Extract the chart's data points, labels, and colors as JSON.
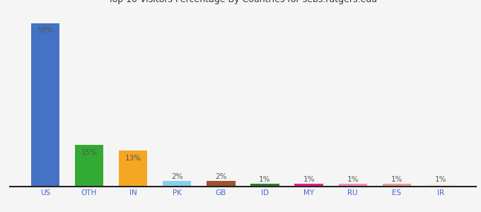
{
  "categories": [
    "US",
    "OTH",
    "IN",
    "PK",
    "GB",
    "ID",
    "MY",
    "RU",
    "ES",
    "IR"
  ],
  "values": [
    59,
    15,
    13,
    2,
    2,
    1,
    1,
    1,
    1,
    1
  ],
  "bar_colors": [
    "#4472c4",
    "#33aa33",
    "#f5a623",
    "#87ceeb",
    "#a0522d",
    "#2e7d32",
    "#e91e8c",
    "#f48fb1",
    "#e8a090",
    "#f5f0dc"
  ],
  "labels": [
    "59%",
    "15%",
    "13%",
    "2%",
    "2%",
    "1%",
    "1%",
    "1%",
    "1%",
    "1%"
  ],
  "ylim": [
    0,
    65
  ],
  "background_color": "#f5f5f5",
  "label_fontsize": 7.5,
  "tick_fontsize": 7.5,
  "title_fontsize": 9
}
